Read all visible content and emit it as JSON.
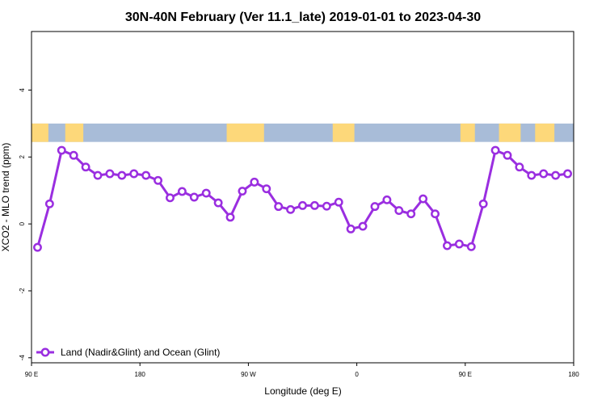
{
  "chart_data": {
    "type": "line",
    "title": "30N-40N February (Ver 11.1_late)   2019-01-01 to 2023-04-30",
    "xlabel": "Longitude (deg E)",
    "ylabel": "XCO2 - MLO trend (ppm)",
    "x_ticks": [
      {
        "value": 90,
        "label": "90 E"
      },
      {
        "value": 180,
        "label": "180"
      },
      {
        "value": 270,
        "label": "90 W"
      },
      {
        "value": 360,
        "label": "0"
      },
      {
        "value": 450,
        "label": "90 E"
      },
      {
        "value": 540,
        "label": "180"
      }
    ],
    "y_ticks": [
      {
        "value": -4,
        "label": "-4"
      },
      {
        "value": -2,
        "label": "-2"
      },
      {
        "value": 0,
        "label": "0"
      },
      {
        "value": 2,
        "label": "2"
      },
      {
        "value": 4,
        "label": "4"
      }
    ],
    "xlim": [
      90,
      540
    ],
    "ylim": [
      -4.15,
      5.75
    ],
    "legend": {
      "position": "bottom-left",
      "entries": [
        {
          "label": "Land (Nadir&Glint) and Ocean (Glint)",
          "color": "#9a2ee0"
        }
      ]
    },
    "map_band": {
      "y_range": [
        2.45,
        3.0
      ],
      "land_color": "#fdd87a",
      "ocean_color": "#a8bcd8"
    },
    "grid": false,
    "series": [
      {
        "name": "Land (Nadir&Glint) and Ocean (Glint)",
        "color": "#9a2ee0",
        "x": [
          95,
          105,
          115,
          125,
          135,
          145,
          155,
          165,
          175,
          185,
          195,
          205,
          215,
          225,
          235,
          245,
          255,
          265,
          275,
          285,
          295,
          305,
          315,
          325,
          335,
          345,
          355,
          365,
          375,
          385,
          395,
          405,
          415,
          425,
          435,
          445,
          455,
          465,
          475,
          485,
          495,
          505,
          515,
          525,
          535
        ],
        "values": [
          -0.7,
          0.6,
          2.2,
          2.05,
          1.7,
          1.45,
          1.5,
          1.45,
          1.5,
          1.45,
          1.3,
          0.78,
          0.97,
          0.8,
          0.92,
          0.63,
          0.2,
          0.98,
          1.25,
          1.05,
          0.52,
          0.43,
          0.55,
          0.55,
          0.53,
          0.65,
          -0.15,
          -0.07,
          0.52,
          0.72,
          0.4,
          0.3,
          0.75,
          0.3,
          -0.65,
          -0.6,
          -0.68,
          0.6,
          2.2,
          2.05,
          1.7,
          1.45,
          1.5,
          1.45,
          1.5
        ]
      }
    ]
  }
}
